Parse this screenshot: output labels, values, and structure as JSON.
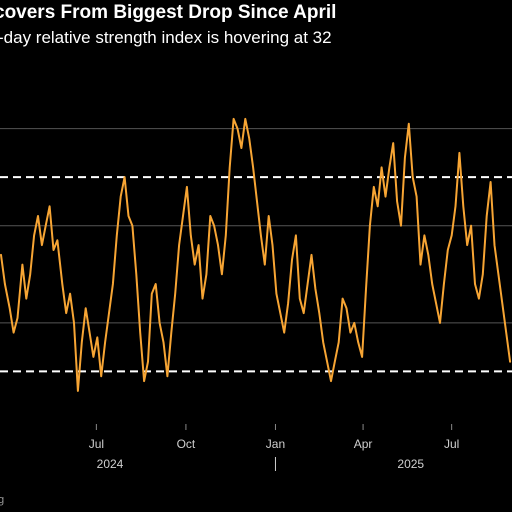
{
  "title": "covers From Biggest Drop Since April",
  "subtitle": "-day relative strength index is hovering at 32",
  "source_fragment": "g",
  "colors": {
    "background": "#000000",
    "line": "#f7a534",
    "grid": "#555555",
    "threshold": "#ffffff",
    "text": "#ffffff",
    "axis_text": "#cfcfcf"
  },
  "chart_data": {
    "type": "line",
    "title": "covers From Biggest Drop Since April",
    "subtitle": "-day relative strength index is hovering at 32",
    "xlabel": "",
    "ylabel": "",
    "xlim": [
      "2024-03-24",
      "2025-09-01"
    ],
    "ylim": [
      20,
      90
    ],
    "grid": true,
    "gridlines_y": [
      40,
      60,
      80
    ],
    "threshold_lines": [
      30,
      70
    ],
    "x_ticks": [
      {
        "date": "2024-07-01",
        "label": "Jul"
      },
      {
        "date": "2024-10-01",
        "label": "Oct"
      },
      {
        "date": "2025-01-01",
        "label": "Jan"
      },
      {
        "date": "2025-04-01",
        "label": "Apr"
      },
      {
        "date": "2025-07-01",
        "label": "Jul"
      }
    ],
    "year_labels": [
      {
        "date": "2024-07-15",
        "label": "2024"
      },
      {
        "date": "2025-05-20",
        "label": "2025"
      }
    ],
    "year_separator": "2025-01-01",
    "series": [
      {
        "values": [
          [
            "2024-03-25",
            54
          ],
          [
            "2024-03-29",
            48
          ],
          [
            "2024-04-03",
            43
          ],
          [
            "2024-04-07",
            38
          ],
          [
            "2024-04-11",
            41
          ],
          [
            "2024-04-16",
            52
          ],
          [
            "2024-04-20",
            45
          ],
          [
            "2024-04-24",
            50
          ],
          [
            "2024-04-28",
            58
          ],
          [
            "2024-05-02",
            62
          ],
          [
            "2024-05-06",
            56
          ],
          [
            "2024-05-10",
            60
          ],
          [
            "2024-05-14",
            64
          ],
          [
            "2024-05-18",
            55
          ],
          [
            "2024-05-22",
            57
          ],
          [
            "2024-05-27",
            48
          ],
          [
            "2024-05-31",
            42
          ],
          [
            "2024-06-04",
            46
          ],
          [
            "2024-06-08",
            40
          ],
          [
            "2024-06-12",
            26
          ],
          [
            "2024-06-16",
            36
          ],
          [
            "2024-06-20",
            43
          ],
          [
            "2024-06-24",
            38
          ],
          [
            "2024-06-28",
            33
          ],
          [
            "2024-07-02",
            37
          ],
          [
            "2024-07-06",
            29
          ],
          [
            "2024-07-10",
            36
          ],
          [
            "2024-07-14",
            42
          ],
          [
            "2024-07-18",
            48
          ],
          [
            "2024-07-22",
            58
          ],
          [
            "2024-07-26",
            66
          ],
          [
            "2024-07-30",
            70
          ],
          [
            "2024-08-03",
            62
          ],
          [
            "2024-08-07",
            60
          ],
          [
            "2024-08-11",
            50
          ],
          [
            "2024-08-15",
            38
          ],
          [
            "2024-08-19",
            28
          ],
          [
            "2024-08-23",
            32
          ],
          [
            "2024-08-27",
            46
          ],
          [
            "2024-08-31",
            48
          ],
          [
            "2024-09-04",
            40
          ],
          [
            "2024-09-08",
            36
          ],
          [
            "2024-09-12",
            29
          ],
          [
            "2024-09-16",
            38
          ],
          [
            "2024-09-20",
            46
          ],
          [
            "2024-09-24",
            56
          ],
          [
            "2024-09-28",
            62
          ],
          [
            "2024-10-02",
            68
          ],
          [
            "2024-10-06",
            58
          ],
          [
            "2024-10-10",
            52
          ],
          [
            "2024-10-14",
            56
          ],
          [
            "2024-10-18",
            45
          ],
          [
            "2024-10-22",
            50
          ],
          [
            "2024-10-26",
            62
          ],
          [
            "2024-10-30",
            60
          ],
          [
            "2024-11-03",
            56
          ],
          [
            "2024-11-07",
            50
          ],
          [
            "2024-11-11",
            58
          ],
          [
            "2024-11-15",
            72
          ],
          [
            "2024-11-19",
            82
          ],
          [
            "2024-11-23",
            80
          ],
          [
            "2024-11-27",
            76
          ],
          [
            "2024-12-01",
            82
          ],
          [
            "2024-12-05",
            78
          ],
          [
            "2024-12-09",
            72
          ],
          [
            "2024-12-13",
            65
          ],
          [
            "2024-12-17",
            58
          ],
          [
            "2024-12-21",
            52
          ],
          [
            "2024-12-25",
            62
          ],
          [
            "2024-12-29",
            56
          ],
          [
            "2025-01-02",
            46
          ],
          [
            "2025-01-06",
            42
          ],
          [
            "2025-01-10",
            38
          ],
          [
            "2025-01-14",
            44
          ],
          [
            "2025-01-18",
            53
          ],
          [
            "2025-01-22",
            58
          ],
          [
            "2025-01-26",
            45
          ],
          [
            "2025-01-30",
            42
          ],
          [
            "2025-02-03",
            48
          ],
          [
            "2025-02-07",
            54
          ],
          [
            "2025-02-11",
            47
          ],
          [
            "2025-02-15",
            42
          ],
          [
            "2025-02-19",
            36
          ],
          [
            "2025-02-23",
            32
          ],
          [
            "2025-02-27",
            28
          ],
          [
            "2025-03-03",
            32
          ],
          [
            "2025-03-07",
            36
          ],
          [
            "2025-03-11",
            45
          ],
          [
            "2025-03-15",
            43
          ],
          [
            "2025-03-19",
            38
          ],
          [
            "2025-03-23",
            40
          ],
          [
            "2025-03-27",
            36
          ],
          [
            "2025-03-31",
            33
          ],
          [
            "2025-04-04",
            47
          ],
          [
            "2025-04-08",
            60
          ],
          [
            "2025-04-12",
            68
          ],
          [
            "2025-04-16",
            64
          ],
          [
            "2025-04-20",
            72
          ],
          [
            "2025-04-24",
            66
          ],
          [
            "2025-04-28",
            72
          ],
          [
            "2025-05-02",
            77
          ],
          [
            "2025-05-06",
            65
          ],
          [
            "2025-05-10",
            60
          ],
          [
            "2025-05-14",
            74
          ],
          [
            "2025-05-18",
            81
          ],
          [
            "2025-05-22",
            70
          ],
          [
            "2025-05-26",
            66
          ],
          [
            "2025-05-30",
            52
          ],
          [
            "2025-06-03",
            58
          ],
          [
            "2025-06-07",
            54
          ],
          [
            "2025-06-11",
            48
          ],
          [
            "2025-06-15",
            44
          ],
          [
            "2025-06-19",
            40
          ],
          [
            "2025-06-23",
            48
          ],
          [
            "2025-06-27",
            55
          ],
          [
            "2025-07-01",
            58
          ],
          [
            "2025-07-05",
            64
          ],
          [
            "2025-07-09",
            75
          ],
          [
            "2025-07-13",
            64
          ],
          [
            "2025-07-17",
            56
          ],
          [
            "2025-07-21",
            60
          ],
          [
            "2025-07-25",
            48
          ],
          [
            "2025-07-29",
            45
          ],
          [
            "2025-08-02",
            50
          ],
          [
            "2025-08-06",
            62
          ],
          [
            "2025-08-10",
            69
          ],
          [
            "2025-08-14",
            56
          ],
          [
            "2025-08-18",
            50
          ],
          [
            "2025-08-22",
            44
          ],
          [
            "2025-08-26",
            38
          ],
          [
            "2025-08-30",
            32
          ]
        ]
      }
    ]
  }
}
